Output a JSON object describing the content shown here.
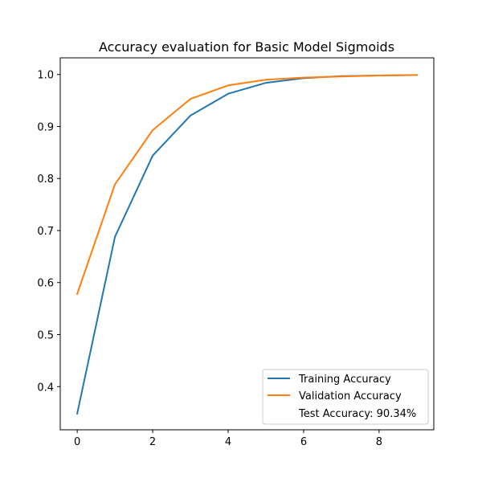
{
  "chart_data": {
    "type": "line",
    "title": "Accuracy evaluation for Basic Model Sigmoids",
    "xlabel": "",
    "ylabel": "",
    "x": [
      0,
      1,
      2,
      3,
      4,
      5,
      6,
      7,
      8,
      9
    ],
    "xlim": [
      -0.45,
      9.45
    ],
    "ylim": [
      0.317,
      1.032
    ],
    "xticks": [
      0,
      2,
      4,
      6,
      8
    ],
    "yticks": [
      0.4,
      0.5,
      0.6,
      0.7,
      0.8,
      0.9,
      1.0
    ],
    "xtick_labels": [
      "0",
      "2",
      "4",
      "6",
      "8"
    ],
    "ytick_labels": [
      "0.4",
      "0.5",
      "0.6",
      "0.7",
      "0.8",
      "0.9",
      "1.0"
    ],
    "grid": false,
    "legend_position": "lower-right",
    "series": [
      {
        "name": "Training Accuracy",
        "color": "#1f77b4",
        "values": [
          0.348,
          0.688,
          0.844,
          0.921,
          0.963,
          0.984,
          0.993,
          0.997,
          0.998,
          0.999
        ]
      },
      {
        "name": "Validation Accuracy",
        "color": "#ff7f0e",
        "values": [
          0.578,
          0.789,
          0.893,
          0.953,
          0.979,
          0.99,
          0.994,
          0.996,
          0.998,
          0.999
        ]
      }
    ],
    "legend_extra": "Test Accuracy: 90.34%"
  }
}
